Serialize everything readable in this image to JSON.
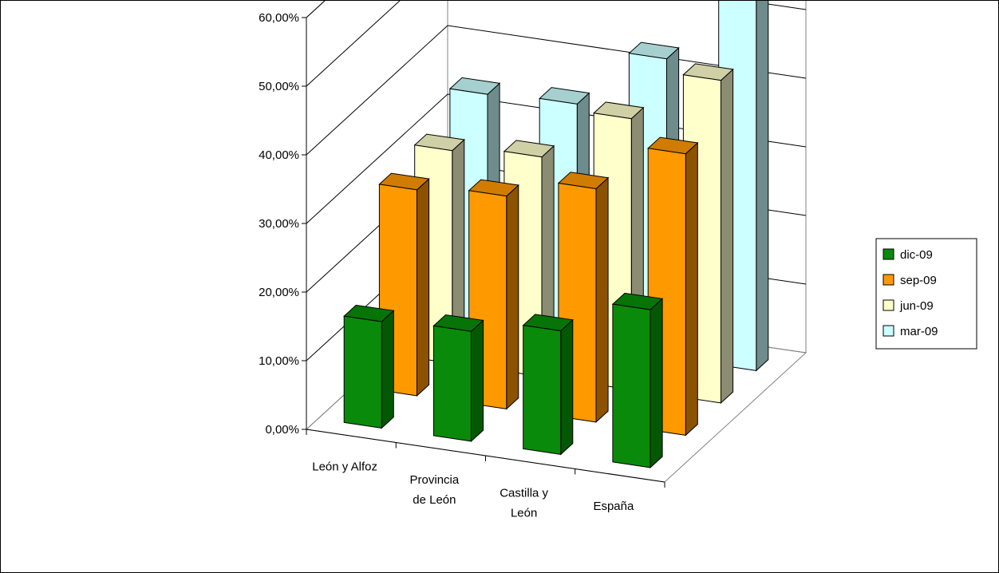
{
  "chart_data": {
    "type": "bar",
    "title": "",
    "xlabel": "",
    "ylabel": "",
    "categories": [
      "León y Alfoz",
      "Provincia de León",
      "Castilla y León",
      "España"
    ],
    "category_label_lines": [
      [
        "León y Alfoz"
      ],
      [
        "Provincia",
        "de León"
      ],
      [
        "Castilla y",
        "León"
      ],
      [
        "España"
      ]
    ],
    "series": [
      {
        "name": "dic-09",
        "values": [
          15.5,
          16.0,
          18.0,
          23.0
        ],
        "colors": {
          "front": "#0A8A0A",
          "side": "#045804",
          "top": "#067406"
        }
      },
      {
        "name": "sep-09",
        "values": [
          30.0,
          31.0,
          34.0,
          41.0
        ],
        "colors": {
          "front": "#FF9900",
          "side": "#8C5200",
          "top": "#D07C00"
        }
      },
      {
        "name": "jun-09",
        "values": [
          31.0,
          32.0,
          39.5,
          47.0
        ],
        "colors": {
          "front": "#FFFFCC",
          "side": "#8C8C72",
          "top": "#D0D0A6"
        }
      },
      {
        "name": "mar-09",
        "values": [
          34.5,
          35.0,
          43.5,
          55.0
        ],
        "colors": {
          "front": "#CCFFFF",
          "side": "#6E8C8C",
          "top": "#A6D0D0"
        }
      }
    ],
    "ylim": [
      0,
      60
    ],
    "yticks": [
      "0,00%",
      "10,00%",
      "20,00%",
      "30,00%",
      "40,00%",
      "50,00%",
      "60,00%"
    ],
    "grid": true,
    "legend_position": "right"
  }
}
